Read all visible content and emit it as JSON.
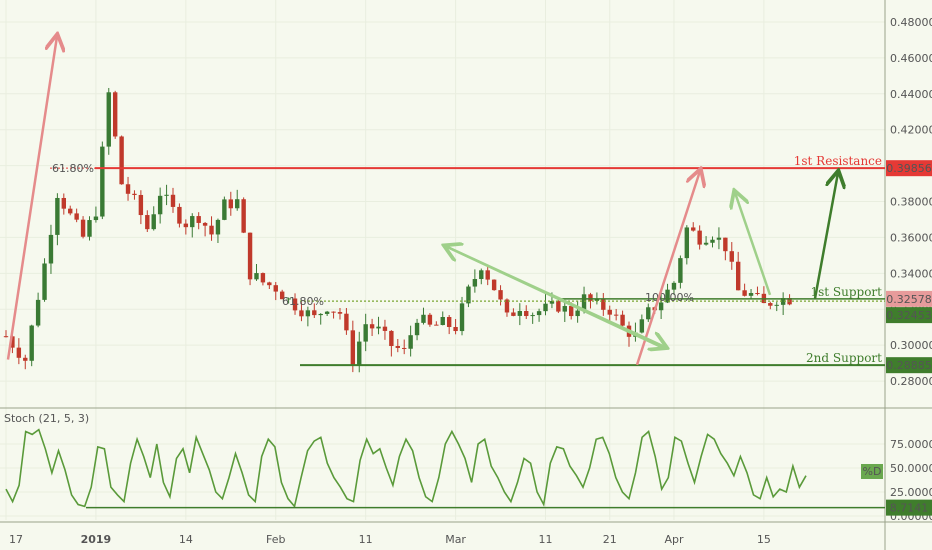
{
  "colors": {
    "background": "#f6f9ee",
    "grid": "#e9eedf",
    "candle_up": "#3a7a34",
    "candle_down": "#c0392b",
    "resistance": "#e53935",
    "support": "#3f7d2c",
    "support_dotted": "#7aa632",
    "arrow_red": "#e58b8b",
    "arrow_green": "#9fd08a",
    "arrow_dark_green": "#3f7d2c",
    "stoch_line": "#5a9a3a",
    "stoch_badge": "#6aa84f"
  },
  "chart_data": [
    {
      "type": "candlestick",
      "instrument_labels": {
        "res_label": "1st Resistance",
        "res_value": "0.39856",
        "sup1_label": "1st Support",
        "sup1_value": "0.32578",
        "sup1b_value": "0.32453",
        "sup2_label": "2nd Support",
        "sup2_value": "0.28885",
        "fib_618": "61.80%",
        "fib_left": "61.80%",
        "fib_mid": "100.00%"
      },
      "levels": {
        "resistance": 0.39856,
        "support1": 0.32578,
        "support1b": 0.32453,
        "support2": 0.28885
      },
      "ylim": [
        0.265,
        0.49
      ],
      "yticks": [
        "0.48000",
        "0.46000",
        "0.44000",
        "0.42000",
        "0.40000",
        "0.38000",
        "0.36000",
        "0.34000",
        "0.32000",
        "0.30000",
        "0.28000"
      ],
      "ytick_values": [
        0.48,
        0.46,
        0.44,
        0.42,
        0.4,
        0.38,
        0.36,
        0.34,
        0.32,
        0.3,
        0.28
      ],
      "xticks": [
        "17",
        "2019",
        "14",
        "Feb",
        "11",
        "Mar",
        "11",
        "21",
        "Apr",
        "15"
      ],
      "xtick_index": [
        0,
        14,
        28,
        42,
        56,
        70,
        84,
        94,
        104,
        118
      ],
      "ohlc_keypoints": [
        [
          0,
          0.305
        ],
        [
          3,
          0.292
        ],
        [
          6,
          0.345
        ],
        [
          8,
          0.385
        ],
        [
          10,
          0.372
        ],
        [
          12,
          0.36
        ],
        [
          14,
          0.375
        ],
        [
          16,
          0.44
        ],
        [
          18,
          0.39
        ],
        [
          20,
          0.38
        ],
        [
          22,
          0.365
        ],
        [
          24,
          0.385
        ],
        [
          26,
          0.375
        ],
        [
          28,
          0.368
        ],
        [
          30,
          0.372
        ],
        [
          32,
          0.362
        ],
        [
          34,
          0.378
        ],
        [
          36,
          0.38
        ],
        [
          38,
          0.34
        ],
        [
          40,
          0.335
        ],
        [
          42,
          0.332
        ],
        [
          44,
          0.325
        ],
        [
          46,
          0.32
        ],
        [
          48,
          0.315
        ],
        [
          50,
          0.322
        ],
        [
          52,
          0.318
        ],
        [
          54,
          0.292
        ],
        [
          56,
          0.312
        ],
        [
          58,
          0.308
        ],
        [
          60,
          0.3
        ],
        [
          62,
          0.296
        ],
        [
          64,
          0.316
        ],
        [
          66,
          0.31
        ],
        [
          68,
          0.312
        ],
        [
          70,
          0.31
        ],
        [
          72,
          0.33
        ],
        [
          74,
          0.345
        ],
        [
          76,
          0.332
        ],
        [
          78,
          0.315
        ],
        [
          80,
          0.322
        ],
        [
          82,
          0.318
        ],
        [
          84,
          0.32
        ],
        [
          86,
          0.322
        ],
        [
          88,
          0.318
        ],
        [
          90,
          0.326
        ],
        [
          92,
          0.322
        ],
        [
          94,
          0.32
        ],
        [
          96,
          0.31
        ],
        [
          98,
          0.305
        ],
        [
          100,
          0.318
        ],
        [
          102,
          0.325
        ],
        [
          104,
          0.335
        ],
        [
          106,
          0.365
        ],
        [
          108,
          0.36
        ],
        [
          110,
          0.362
        ],
        [
          112,
          0.355
        ],
        [
          114,
          0.33
        ],
        [
          116,
          0.328
        ],
        [
          118,
          0.322
        ],
        [
          120,
          0.326
        ]
      ]
    },
    {
      "type": "line",
      "name": "Stoch (21, 5, 3)",
      "title": "Stoch (21, 5, 3)",
      "badge": "%D",
      "level_label": "8.7141",
      "level_value": 8.7141,
      "ylim": [
        0,
        100
      ],
      "yticks": [
        "75.00000",
        "50.00000",
        "25.00000",
        "0.00000"
      ],
      "ytick_values": [
        75,
        50,
        25,
        0
      ],
      "values": [
        28,
        15,
        32,
        88,
        85,
        90,
        70,
        45,
        68,
        48,
        22,
        12,
        10,
        30,
        72,
        70,
        30,
        22,
        15,
        55,
        80,
        62,
        40,
        75,
        35,
        20,
        60,
        70,
        45,
        82,
        65,
        48,
        25,
        18,
        40,
        65,
        45,
        22,
        15,
        62,
        80,
        72,
        35,
        18,
        10,
        40,
        68,
        78,
        82,
        55,
        40,
        30,
        18,
        15,
        58,
        80,
        65,
        70,
        50,
        32,
        62,
        80,
        68,
        40,
        20,
        15,
        40,
        75,
        88,
        75,
        60,
        35,
        75,
        80,
        52,
        40,
        25,
        15,
        35,
        60,
        55,
        25,
        12,
        55,
        72,
        70,
        52,
        42,
        30,
        50,
        80,
        82,
        65,
        40,
        25,
        18,
        45,
        82,
        88,
        62,
        28,
        40,
        82,
        78,
        55,
        35,
        62,
        85,
        80,
        65,
        55,
        42,
        62,
        45,
        22,
        18,
        40,
        20,
        28,
        25,
        52,
        30,
        42
      ]
    }
  ]
}
